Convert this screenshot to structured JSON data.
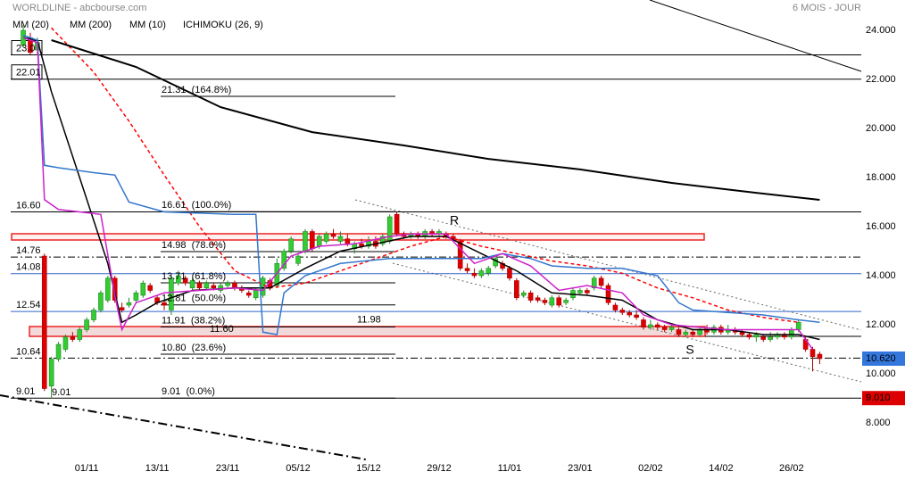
{
  "chart_data": {
    "type": "candlestick",
    "title": "WORLDLINE - abcbourse.com",
    "subtitle": "6 MOIS - JOUR",
    "up_color": "#33cc33",
    "down_color": "#dd0000",
    "xlim": [
      -3.3,
      118.9
    ],
    "xticks": [
      {
        "value": 9,
        "label": "01/11"
      },
      {
        "value": 19,
        "label": "13/11"
      },
      {
        "value": 29,
        "label": "23/11"
      },
      {
        "value": 39,
        "label": "05/12"
      },
      {
        "value": 49,
        "label": "15/12"
      },
      {
        "value": 59,
        "label": "29/12"
      },
      {
        "value": 69,
        "label": "11/01"
      },
      {
        "value": 79,
        "label": "23/01"
      },
      {
        "value": 89,
        "label": "02/02"
      },
      {
        "value": 99,
        "label": "14/02"
      },
      {
        "value": 109,
        "label": "26/02"
      }
    ],
    "ylim": [
      6.5,
      25.2
    ],
    "yticks": [
      {
        "value": 8,
        "label": "8.000"
      },
      {
        "value": 10,
        "label": "10.000"
      },
      {
        "value": 12,
        "label": "12.000"
      },
      {
        "value": 14,
        "label": "14.000"
      },
      {
        "value": 16,
        "label": "16.000"
      },
      {
        "value": 18,
        "label": "18.000"
      },
      {
        "value": 20,
        "label": "20.000"
      },
      {
        "value": 22,
        "label": "22.000"
      },
      {
        "value": 24,
        "label": "24.000"
      }
    ],
    "grid": false,
    "candles": [
      [
        23.4,
        24.2,
        23.3,
        24.0
      ],
      [
        23.7,
        23.9,
        23.0,
        23.1
      ],
      [
        23.2,
        23.7,
        23.0,
        23.5
      ],
      [
        14.8,
        14.9,
        9.3,
        9.4
      ],
      [
        9.5,
        10.7,
        9.0,
        10.6
      ],
      [
        10.6,
        11.3,
        10.5,
        11.2
      ],
      [
        11.0,
        11.6,
        10.9,
        11.5
      ],
      [
        11.5,
        11.7,
        11.3,
        11.4
      ],
      [
        11.4,
        11.9,
        11.3,
        11.8
      ],
      [
        11.8,
        12.3,
        11.7,
        12.2
      ],
      [
        12.2,
        12.7,
        12.1,
        12.6
      ],
      [
        12.6,
        13.4,
        12.5,
        13.3
      ],
      [
        13.0,
        14.0,
        12.9,
        13.9
      ],
      [
        13.9,
        14.0,
        12.9,
        13.0
      ],
      [
        12.7,
        12.9,
        12.5,
        12.6
      ],
      [
        12.8,
        13.1,
        12.7,
        12.9
      ],
      [
        13.0,
        13.4,
        12.9,
        13.3
      ],
      [
        13.2,
        13.8,
        13.1,
        13.7
      ],
      [
        13.6,
        13.7,
        13.3,
        13.4
      ],
      [
        13.1,
        13.2,
        12.8,
        12.9
      ],
      [
        12.9,
        13.0,
        12.6,
        12.8
      ],
      [
        12.6,
        14.0,
        12.4,
        13.9
      ],
      [
        13.7,
        14.2,
        13.6,
        14.0
      ],
      [
        13.9,
        14.0,
        13.6,
        13.7
      ],
      [
        13.5,
        13.9,
        13.4,
        13.8
      ],
      [
        13.7,
        13.8,
        13.4,
        13.5
      ],
      [
        13.5,
        13.8,
        13.4,
        13.7
      ],
      [
        13.6,
        13.7,
        13.4,
        13.5
      ],
      [
        13.4,
        13.7,
        13.3,
        13.6
      ],
      [
        13.6,
        13.8,
        13.5,
        13.7
      ],
      [
        13.7,
        13.8,
        13.4,
        13.5
      ],
      [
        13.5,
        13.6,
        13.3,
        13.4
      ],
      [
        13.3,
        13.4,
        13.1,
        13.2
      ],
      [
        13.1,
        13.5,
        13.0,
        13.4
      ],
      [
        13.2,
        14.0,
        13.1,
        13.9
      ],
      [
        13.8,
        13.9,
        13.4,
        13.5
      ],
      [
        13.6,
        14.7,
        13.5,
        14.5
      ],
      [
        14.3,
        15.1,
        14.2,
        15.0
      ],
      [
        15.0,
        15.6,
        14.9,
        15.5
      ],
      [
        14.5,
        14.9,
        14.4,
        14.8
      ],
      [
        15.0,
        15.9,
        14.9,
        15.8
      ],
      [
        15.8,
        15.9,
        15.0,
        15.1
      ],
      [
        15.2,
        15.7,
        15.1,
        15.6
      ],
      [
        15.4,
        15.8,
        15.3,
        15.7
      ],
      [
        15.7,
        15.9,
        15.5,
        15.6
      ],
      [
        15.4,
        15.8,
        15.3,
        15.6
      ],
      [
        15.5,
        15.7,
        15.2,
        15.3
      ],
      [
        15.1,
        15.4,
        14.9,
        15.3
      ],
      [
        15.3,
        15.5,
        15.1,
        15.2
      ],
      [
        15.2,
        15.6,
        15.1,
        15.4
      ],
      [
        15.4,
        15.6,
        15.1,
        15.2
      ],
      [
        15.3,
        15.7,
        15.2,
        15.6
      ],
      [
        15.4,
        16.5,
        15.3,
        16.4
      ],
      [
        16.5,
        16.6,
        15.6,
        15.7
      ],
      [
        15.7,
        15.8,
        15.5,
        15.6
      ],
      [
        15.6,
        15.8,
        15.5,
        15.7
      ],
      [
        15.7,
        15.8,
        15.5,
        15.6
      ],
      [
        15.6,
        15.9,
        15.5,
        15.8
      ],
      [
        15.8,
        15.9,
        15.6,
        15.7
      ],
      [
        15.7,
        15.9,
        15.6,
        15.8
      ],
      [
        15.7,
        15.8,
        15.5,
        15.6
      ],
      [
        15.6,
        15.7,
        15.4,
        15.5
      ],
      [
        15.4,
        15.5,
        14.2,
        14.3
      ],
      [
        14.3,
        14.5,
        14.1,
        14.2
      ],
      [
        14.1,
        14.3,
        13.9,
        14.0
      ],
      [
        14.0,
        14.3,
        13.9,
        14.2
      ],
      [
        14.1,
        14.4,
        14.0,
        14.3
      ],
      [
        14.4,
        14.8,
        14.3,
        14.7
      ],
      [
        14.5,
        14.6,
        14.2,
        14.3
      ],
      [
        14.3,
        14.4,
        13.8,
        13.9
      ],
      [
        13.8,
        13.9,
        13.0,
        13.1
      ],
      [
        13.2,
        13.4,
        13.1,
        13.3
      ],
      [
        13.3,
        13.4,
        12.9,
        13.0
      ],
      [
        13.1,
        13.2,
        12.9,
        13.0
      ],
      [
        13.0,
        13.1,
        12.8,
        12.9
      ],
      [
        12.8,
        13.2,
        12.7,
        13.1
      ],
      [
        13.1,
        13.2,
        12.7,
        12.8
      ],
      [
        12.9,
        13.1,
        12.8,
        13.0
      ],
      [
        13.1,
        13.5,
        13.0,
        13.4
      ],
      [
        13.3,
        13.5,
        13.2,
        13.4
      ],
      [
        13.4,
        13.5,
        13.2,
        13.3
      ],
      [
        13.5,
        14.0,
        13.4,
        13.9
      ],
      [
        13.9,
        14.0,
        13.5,
        13.6
      ],
      [
        13.6,
        13.7,
        12.8,
        12.9
      ],
      [
        12.8,
        12.9,
        12.5,
        12.6
      ],
      [
        12.6,
        12.7,
        12.4,
        12.5
      ],
      [
        12.5,
        12.6,
        12.3,
        12.4
      ],
      [
        12.4,
        12.6,
        12.2,
        12.3
      ],
      [
        12.2,
        12.3,
        11.8,
        11.9
      ],
      [
        11.9,
        12.2,
        11.8,
        12.0
      ],
      [
        12.0,
        12.1,
        11.8,
        11.9
      ],
      [
        11.9,
        12.0,
        11.7,
        11.8
      ],
      [
        11.8,
        12.0,
        11.7,
        11.9
      ],
      [
        11.8,
        11.9,
        11.5,
        11.6
      ],
      [
        11.6,
        11.8,
        11.5,
        11.7
      ],
      [
        11.7,
        11.8,
        11.5,
        11.6
      ],
      [
        11.6,
        11.9,
        11.5,
        11.8
      ],
      [
        11.8,
        12.0,
        11.6,
        11.7
      ],
      [
        11.7,
        12.0,
        11.6,
        11.9
      ],
      [
        11.9,
        12.0,
        11.6,
        11.7
      ],
      [
        11.7,
        12.0,
        11.6,
        11.8
      ],
      [
        11.8,
        11.9,
        11.6,
        11.7
      ],
      [
        11.7,
        11.8,
        11.5,
        11.6
      ],
      [
        11.6,
        11.7,
        11.4,
        11.5
      ],
      [
        11.5,
        11.7,
        11.3,
        11.6
      ],
      [
        11.5,
        11.6,
        11.3,
        11.4
      ],
      [
        11.4,
        11.7,
        11.3,
        11.5
      ],
      [
        11.5,
        11.7,
        11.4,
        11.6
      ],
      [
        11.6,
        11.7,
        11.4,
        11.5
      ],
      [
        11.5,
        11.9,
        11.4,
        11.8
      ],
      [
        11.8,
        12.2,
        11.7,
        12.1
      ],
      [
        11.4,
        11.5,
        10.9,
        11.0
      ],
      [
        11.0,
        11.1,
        10.1,
        10.7
      ],
      [
        10.8,
        10.9,
        10.4,
        10.62
      ]
    ],
    "series": [
      {
        "name": "MM (20)",
        "color": "#ff0000",
        "dashed": true,
        "x": [
          4,
          10,
          15,
          20,
          25,
          30,
          35,
          40,
          45,
          50,
          55,
          60,
          65,
          70,
          75,
          80,
          85,
          90,
          95,
          100,
          105,
          110
        ],
        "values": [
          24.1,
          22.3,
          20.3,
          18.1,
          16.0,
          14.2,
          13.5,
          13.7,
          14.2,
          14.7,
          15.2,
          15.6,
          15.2,
          14.9,
          14.6,
          14.4,
          14.1,
          13.5,
          13.1,
          12.6,
          12.3,
          12.1
        ]
      },
      {
        "name": "MM (200)",
        "color": "#000000",
        "width": 2,
        "x": [
          4,
          16,
          28,
          41,
          54,
          66,
          79,
          92,
          104,
          113
        ],
        "values": [
          23.6,
          22.51,
          20.87,
          19.85,
          19.31,
          18.76,
          18.33,
          17.78,
          17.38,
          17.09
        ]
      },
      {
        "name": "MM (10)",
        "color": "#000000",
        "width": 1.5,
        "x": [
          0,
          2,
          4,
          8,
          12,
          14,
          16,
          19,
          24,
          30,
          35,
          40,
          45,
          50,
          55,
          60,
          65,
          70,
          75,
          80,
          85,
          90,
          95,
          100,
          105,
          110,
          113
        ],
        "values": [
          23.7,
          23.6,
          21.5,
          18.0,
          14.5,
          12.1,
          12.4,
          12.9,
          13.4,
          13.5,
          13.5,
          14.3,
          15.0,
          15.3,
          15.6,
          15.6,
          14.9,
          14.2,
          13.3,
          13.2,
          13.0,
          12.2,
          11.8,
          11.8,
          11.6,
          11.6,
          11.4
        ]
      },
      {
        "name": "ICHIMOKU (26, 9)",
        "color": "#3377cc",
        "lines": [
          {
            "color": "#3377cc",
            "x": [
              0,
              2,
              3,
              5,
              10,
              13,
              15,
              20,
              30,
              33,
              34,
              36,
              37,
              40,
              45,
              52,
              60,
              65,
              68,
              72,
              75,
              80,
              85,
              90,
              93,
              95,
              100,
              105,
              110,
              113
            ],
            "values": [
              23.8,
              23.6,
              18.5,
              18.4,
              18.2,
              18.1,
              17.0,
              16.6,
              16.5,
              16.5,
              11.7,
              11.6,
              13.3,
              14.0,
              14.5,
              14.7,
              14.7,
              14.7,
              14.9,
              14.7,
              14.4,
              14.3,
              14.3,
              14.0,
              12.9,
              12.6,
              12.5,
              12.4,
              12.2,
              12.1
            ]
          },
          {
            "color": "#cc22cc",
            "x": [
              0,
              2,
              3,
              5,
              8,
              11,
              13,
              14,
              16,
              20,
              25,
              30,
              34,
              38,
              42,
              47,
              52,
              55,
              60,
              64,
              68,
              72,
              76,
              80,
              85,
              88,
              92,
              96,
              100,
              105,
              110,
              112
            ],
            "values": [
              23.7,
              23.5,
              17.1,
              16.7,
              16.6,
              16.5,
              13.2,
              11.8,
              12.9,
              13.3,
              13.4,
              13.5,
              13.4,
              14.8,
              15.2,
              15.3,
              15.6,
              15.7,
              15.7,
              14.5,
              14.9,
              14.4,
              13.4,
              13.6,
              13.3,
              12.4,
              12.0,
              11.9,
              11.8,
              11.8,
              11.8,
              11.0
            ]
          }
        ]
      }
    ],
    "levels": [
      {
        "value": 23.0,
        "label": "23.0",
        "style": "solid",
        "color": "#000000",
        "boxed": true
      },
      {
        "value": 22.01,
        "label": "22.01",
        "style": "solid",
        "color": "#000000",
        "boxed": true
      },
      {
        "value": 16.6,
        "label": "16.60",
        "style": "solid",
        "color": "#000000",
        "boxed": false
      },
      {
        "value": 14.76,
        "label": "14.76",
        "style": "dashdot",
        "color": "#000000",
        "boxed": false
      },
      {
        "value": 14.08,
        "label": "14.08",
        "style": "solid",
        "color": "#3366cc",
        "boxed": false
      },
      {
        "value": 12.54,
        "label": "12.54",
        "style": "solid",
        "color": "#3366cc",
        "boxed": false
      },
      {
        "value": 10.64,
        "label": "10.64",
        "style": "dashdot",
        "color": "#000000",
        "boxed": false
      },
      {
        "value": 9.01,
        "label": "9.01",
        "style": "solid",
        "color": "#000000",
        "boxed": false
      }
    ],
    "fibonacci": [
      {
        "value": 21.31,
        "label": "21.31  (164.8%)"
      },
      {
        "value": 16.61,
        "label": "16.61  (100.0%)"
      },
      {
        "value": 14.98,
        "label": "14.98  (78.6%)"
      },
      {
        "value": 13.71,
        "label": "13.71  (61.8%)"
      },
      {
        "value": 12.81,
        "label": "12.81  (50.0%)"
      },
      {
        "value": 11.91,
        "label": "11.91  (38.2%)"
      },
      {
        "value": 10.8,
        "label": "10.80  (23.6%)"
      },
      {
        "value": 9.01,
        "label": "9.01  (0.0%)"
      }
    ],
    "price_labels": [
      {
        "value": 11.98,
        "label": "11.98"
      },
      {
        "value": 11.6,
        "label": "11.60"
      },
      {
        "value": 9.01,
        "label": "9.01"
      }
    ],
    "price_tags": [
      {
        "value": 10.62,
        "label": "10.620",
        "color": "#3377dd"
      },
      {
        "value": 9.01,
        "label": "9.010",
        "color": "#dd0000"
      }
    ],
    "annotations": [
      "R",
      "S"
    ]
  }
}
